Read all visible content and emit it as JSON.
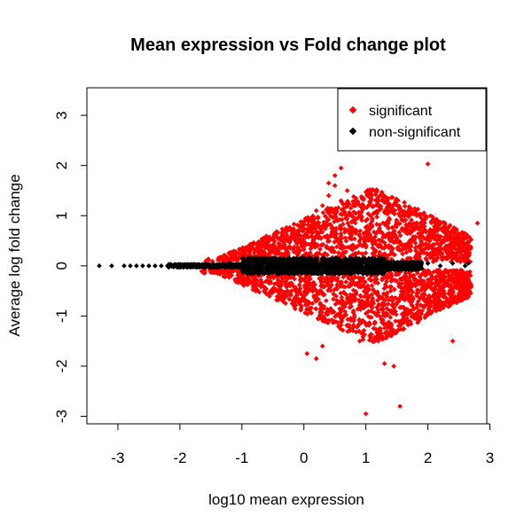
{
  "chart_data": {
    "type": "scatter",
    "title": "Mean expression vs Fold change plot",
    "xlabel": "log10 mean expression",
    "ylabel": "Average log fold change",
    "xlim": [
      -3.5,
      2.95
    ],
    "ylim": [
      -3.15,
      3.55
    ],
    "x_ticks": [
      "-3",
      "-2",
      "-1",
      "0",
      "1",
      "2",
      "3"
    ],
    "y_ticks": [
      "-3",
      "-2",
      "-1",
      "0",
      "1",
      "2",
      "3"
    ],
    "grid": false,
    "legend_position": "top-right",
    "colors": {
      "significant": "#ff0000",
      "non_significant": "#000000"
    },
    "series": [
      {
        "name": "significant",
        "color": "#ff0000",
        "points": [
          [
            -1.6,
            0.05
          ],
          [
            -1.4,
            -0.08
          ],
          [
            -1.2,
            0.1
          ],
          [
            -1.0,
            0.15
          ],
          [
            -0.9,
            -0.18
          ],
          [
            -0.8,
            0.2
          ],
          [
            -0.7,
            0.25
          ],
          [
            -0.6,
            -0.3
          ],
          [
            -0.5,
            0.35
          ],
          [
            -0.4,
            -0.4
          ],
          [
            -0.3,
            0.5
          ],
          [
            -0.2,
            -0.5
          ],
          [
            -0.1,
            0.7
          ],
          [
            0.0,
            -0.6
          ],
          [
            0.1,
            0.9
          ],
          [
            0.2,
            -0.7
          ],
          [
            0.2,
            1.1
          ],
          [
            0.3,
            1.2
          ],
          [
            0.3,
            -0.8
          ],
          [
            0.4,
            1.4
          ],
          [
            0.4,
            -0.9
          ],
          [
            0.5,
            1.6
          ],
          [
            0.5,
            1.8
          ],
          [
            0.6,
            -1.0
          ],
          [
            0.6,
            1.3
          ],
          [
            0.7,
            1.5
          ],
          [
            0.7,
            -1.2
          ],
          [
            0.8,
            1.2
          ],
          [
            0.8,
            -0.9
          ],
          [
            0.9,
            1.0
          ],
          [
            0.9,
            -1.1
          ],
          [
            1.0,
            0.9
          ],
          [
            1.0,
            -0.8
          ],
          [
            1.1,
            0.8
          ],
          [
            1.1,
            -0.7
          ],
          [
            1.2,
            0.7
          ],
          [
            1.2,
            -0.6
          ],
          [
            1.3,
            0.6
          ],
          [
            1.4,
            0.5
          ],
          [
            1.4,
            -0.5
          ],
          [
            1.5,
            0.55
          ],
          [
            1.6,
            -0.45
          ],
          [
            1.7,
            0.45
          ],
          [
            1.8,
            -0.4
          ],
          [
            1.9,
            0.4
          ],
          [
            2.0,
            -0.35
          ],
          [
            2.1,
            0.3
          ],
          [
            2.2,
            -0.3
          ],
          [
            2.3,
            0.4
          ],
          [
            2.4,
            -0.5
          ],
          [
            2.5,
            0.3
          ],
          [
            2.6,
            -0.4
          ],
          [
            2.8,
            0.85
          ],
          [
            0.6,
            2.4
          ],
          [
            0.6,
            1.95
          ],
          [
            0.4,
            1.65
          ],
          [
            2.0,
            2.03
          ],
          [
            1.0,
            -2.95
          ],
          [
            1.55,
            -2.8
          ],
          [
            1.3,
            -1.95
          ],
          [
            1.45,
            -2.0
          ],
          [
            0.05,
            -1.75
          ],
          [
            0.2,
            -1.85
          ],
          [
            2.4,
            -1.5
          ],
          [
            1.4,
            -1.2
          ],
          [
            0.9,
            -1.5
          ],
          [
            1.2,
            -1.5
          ],
          [
            0.3,
            -1.6
          ]
        ]
      },
      {
        "name": "non-significant",
        "color": "#000000",
        "points": [
          [
            -3.3,
            0.0
          ],
          [
            -3.1,
            0.0
          ],
          [
            -2.9,
            0.0
          ],
          [
            -2.8,
            0.0
          ],
          [
            -2.7,
            0.0
          ],
          [
            -2.6,
            0.0
          ],
          [
            -2.5,
            0.0
          ],
          [
            -2.4,
            0.0
          ],
          [
            -2.3,
            0.0
          ],
          [
            -2.2,
            0.0
          ],
          [
            -2.1,
            0.0
          ],
          [
            -2.0,
            0.0
          ],
          [
            -1.9,
            0.0
          ],
          [
            -1.8,
            0.0
          ],
          [
            -1.7,
            0.0
          ],
          [
            -1.6,
            0.0
          ],
          [
            -1.5,
            0.0
          ],
          [
            -1.4,
            0.0
          ],
          [
            -1.3,
            0.0
          ],
          [
            -1.2,
            0.05
          ],
          [
            -1.1,
            0.0
          ],
          [
            -1.0,
            -0.05
          ],
          [
            -0.9,
            0.05
          ],
          [
            -0.8,
            0.0
          ],
          [
            -0.7,
            -0.08
          ],
          [
            -0.6,
            0.08
          ],
          [
            -0.5,
            0.0
          ],
          [
            -0.4,
            0.1
          ],
          [
            -0.3,
            -0.1
          ],
          [
            -0.2,
            0.12
          ],
          [
            -0.1,
            0.0
          ],
          [
            0.0,
            -0.12
          ],
          [
            0.1,
            0.12
          ],
          [
            0.2,
            0.0
          ],
          [
            0.3,
            -0.12
          ],
          [
            0.4,
            0.12
          ],
          [
            0.5,
            0.0
          ],
          [
            0.6,
            -0.1
          ],
          [
            0.7,
            0.1
          ],
          [
            0.8,
            0.0
          ],
          [
            0.9,
            -0.08
          ],
          [
            1.0,
            0.05
          ],
          [
            1.2,
            0.0
          ],
          [
            1.4,
            0.05
          ],
          [
            1.6,
            0.0
          ],
          [
            1.8,
            -0.05
          ],
          [
            2.0,
            0.05
          ],
          [
            2.2,
            0.0
          ],
          [
            2.4,
            0.05
          ],
          [
            2.6,
            0.0
          ],
          [
            2.65,
            0.05
          ]
        ]
      }
    ]
  }
}
